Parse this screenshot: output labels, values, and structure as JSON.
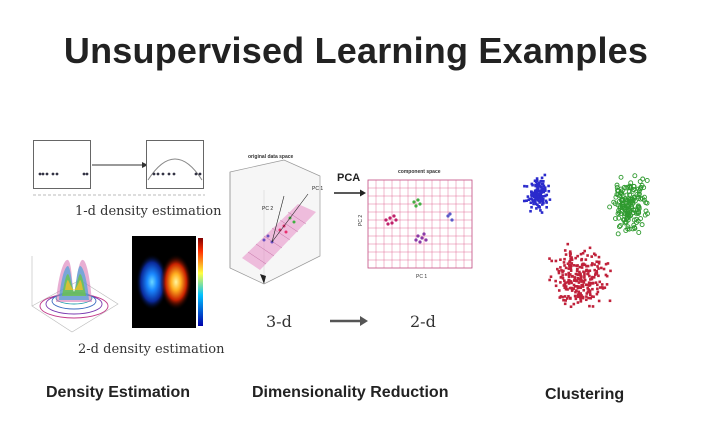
{
  "slide": {
    "title": "Unsupervised Learning Examples"
  },
  "density": {
    "caption_1d": "1-d density estimation",
    "caption_2d": "2-d density estimation",
    "section_label": "Density Estimation"
  },
  "dimred": {
    "original_space_title": "original data space",
    "component_space_title": "component space",
    "pca_label": "PCA",
    "pc1": "PC 1",
    "pc2": "PC 2",
    "pc_axis_x": "PC 1",
    "pc_axis_y": "PC 2",
    "from_dim": "3-d",
    "to_dim": "2-d",
    "section_label": "Dimensionality Reduction"
  },
  "clustering": {
    "section_label": "Clustering",
    "colors": {
      "blue": "#2a2acc",
      "green": "#2f9a2f",
      "red": "#c0213a"
    }
  }
}
